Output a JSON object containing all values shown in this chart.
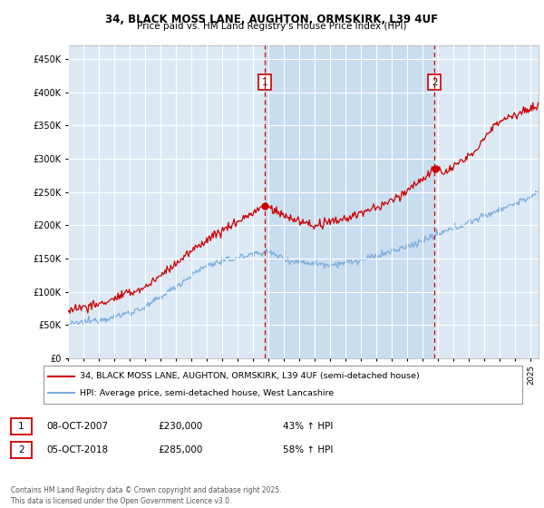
{
  "title": "34, BLACK MOSS LANE, AUGHTON, ORMSKIRK, L39 4UF",
  "subtitle": "Price paid vs. HM Land Registry's House Price Index (HPI)",
  "background_color": "#dce9f5",
  "highlight_color": "#c8ddf0",
  "ylim": [
    0,
    470000
  ],
  "yticks": [
    0,
    50000,
    100000,
    150000,
    200000,
    250000,
    300000,
    350000,
    400000,
    450000
  ],
  "year_start": 1995,
  "year_end": 2025,
  "marker1_x": 2007.77,
  "marker2_x": 2018.76,
  "marker1_price": 230000,
  "marker2_price": 285000,
  "marker1_date": "08-OCT-2007",
  "marker2_date": "05-OCT-2018",
  "marker1_pct": "43% ↑ HPI",
  "marker2_pct": "58% ↑ HPI",
  "legend_entry1": "34, BLACK MOSS LANE, AUGHTON, ORMSKIRK, L39 4UF (semi-detached house)",
  "legend_entry2": "HPI: Average price, semi-detached house, West Lancashire",
  "footer": "Contains HM Land Registry data © Crown copyright and database right 2025.\nThis data is licensed under the Open Government Licence v3.0.",
  "red_color": "#cc0000",
  "blue_color": "#7aace0"
}
